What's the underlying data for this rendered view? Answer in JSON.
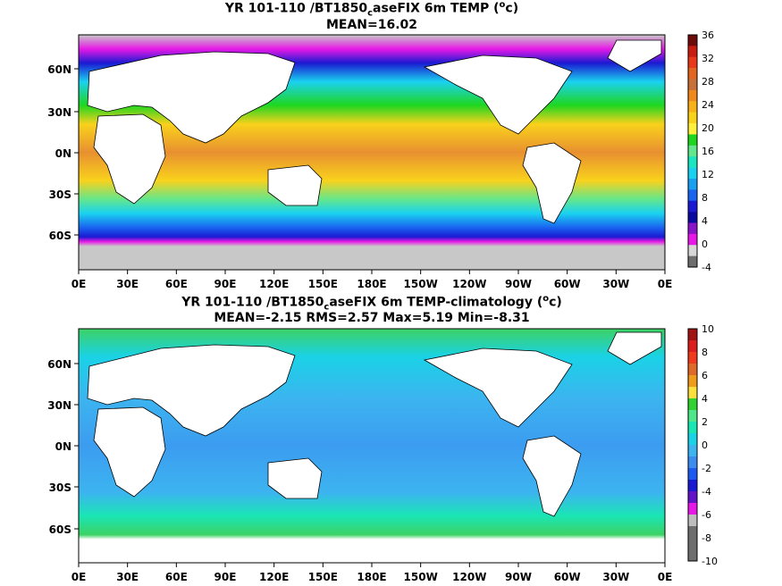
{
  "chart_data": [
    {
      "type": "heatmap",
      "title_prefix": "YR 101-110 /BT1850",
      "title_sub": "c",
      "title_rest": "aseFIX 6m TEMP (",
      "title_unit_sup": "o",
      "title_unit_end": "c)",
      "subtitle": "MEAN=16.02",
      "mean": 16.02,
      "x_ticks": [
        "0E",
        "30E",
        "60E",
        "90E",
        "120E",
        "150E",
        "180E",
        "150W",
        "120W",
        "90W",
        "60W",
        "30W",
        "0E"
      ],
      "y_ticks": [
        "60N",
        "30N",
        "0N",
        "30S",
        "60S"
      ],
      "colorbar": {
        "labels": [
          "36",
          "32",
          "28",
          "24",
          "20",
          "16",
          "12",
          "8",
          "4",
          "0",
          "-4"
        ],
        "colors": [
          "#6e0c0c",
          "#c81e12",
          "#e8391a",
          "#e26520",
          "#c8703a",
          "#f08a1c",
          "#f7b21a",
          "#f9d21c",
          "#fff03c",
          "#1fd61f",
          "#64e68c",
          "#1ae6c2",
          "#1ad2f0",
          "#1aa0f0",
          "#1a64f0",
          "#1a1ad2",
          "#0a0aa0",
          "#8a14c8",
          "#e619e6",
          "#d7d7d7",
          "#6e6e6e"
        ],
        "min": -4,
        "max": 36
      }
    },
    {
      "type": "heatmap",
      "title_prefix": "YR 101-110 /BT1850",
      "title_sub": "c",
      "title_rest": "aseFIX 6m TEMP-climatology (",
      "title_unit_sup": "o",
      "title_unit_end": "c)",
      "subtitle": "MEAN=-2.15   RMS=2.57   Max=5.19   Min=-8.31",
      "mean": -2.15,
      "rms": 2.57,
      "max": 5.19,
      "min": -8.31,
      "x_ticks": [
        "0E",
        "30E",
        "60E",
        "90E",
        "120E",
        "150E",
        "180E",
        "150W",
        "120W",
        "90W",
        "60W",
        "30W",
        "0E"
      ],
      "y_ticks": [
        "60N",
        "30N",
        "0N",
        "30S",
        "60S"
      ],
      "colorbar": {
        "labels": [
          "10",
          "8",
          "6",
          "4",
          "2",
          "0",
          "-2",
          "-4",
          "-6",
          "-8",
          "-10"
        ],
        "colors": [
          "#a01414",
          "#dc1e1e",
          "#f03c1e",
          "#e06a2a",
          "#f09c1c",
          "#fde03c",
          "#32d232",
          "#50e68c",
          "#1ae6b4",
          "#1ad2e6",
          "#3cb4f0",
          "#3c8cf0",
          "#1e5af0",
          "#1a1ad2",
          "#6414c8",
          "#e619e6",
          "#bebebe",
          "#6e6e6e",
          "#6e6e6e",
          "#6e6e6e"
        ],
        "min": -10,
        "max": 10
      }
    }
  ]
}
